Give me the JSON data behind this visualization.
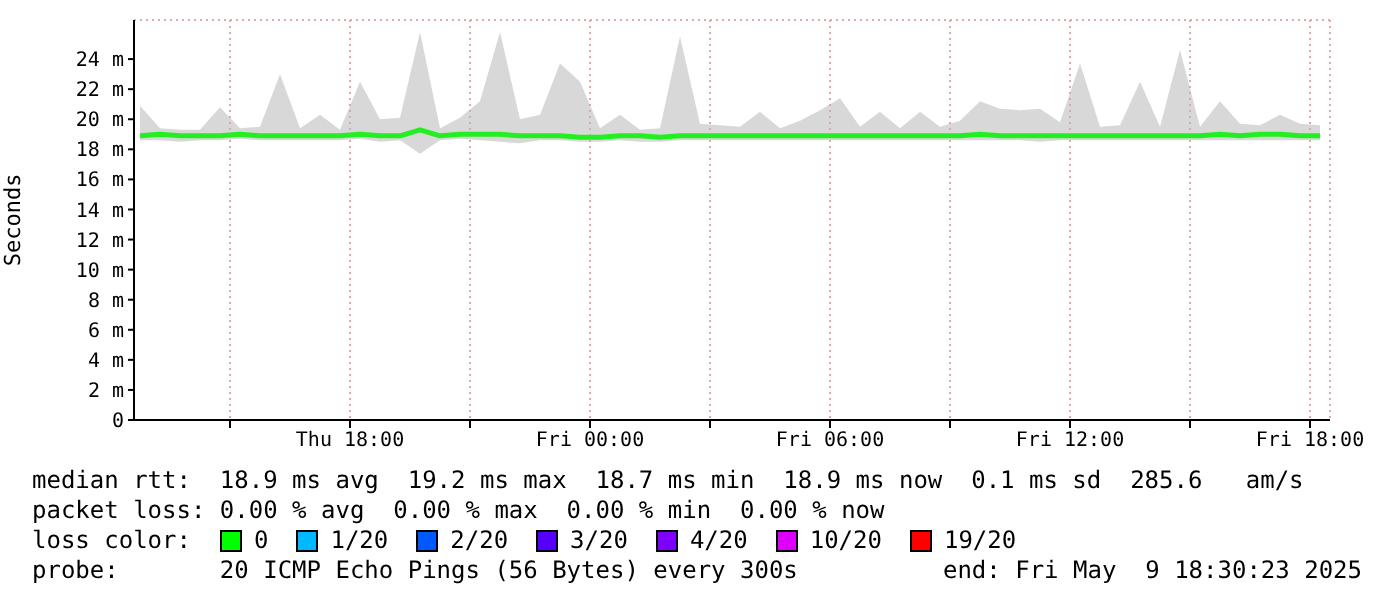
{
  "chart_data": {
    "type": "line",
    "ylabel": "Seconds",
    "x": [
      "2025-05-08T12:45",
      "2025-05-08T13:15",
      "2025-05-08T13:45",
      "2025-05-08T14:15",
      "2025-05-08T14:45",
      "2025-05-08T15:15",
      "2025-05-08T15:45",
      "2025-05-08T16:15",
      "2025-05-08T16:45",
      "2025-05-08T17:15",
      "2025-05-08T17:45",
      "2025-05-08T18:15",
      "2025-05-08T18:45",
      "2025-05-08T19:15",
      "2025-05-08T19:45",
      "2025-05-08T20:15",
      "2025-05-08T20:45",
      "2025-05-08T21:15",
      "2025-05-08T21:45",
      "2025-05-08T22:15",
      "2025-05-08T22:45",
      "2025-05-08T23:15",
      "2025-05-08T23:45",
      "2025-05-09T00:15",
      "2025-05-09T00:45",
      "2025-05-09T01:15",
      "2025-05-09T01:45",
      "2025-05-09T02:15",
      "2025-05-09T02:45",
      "2025-05-09T03:15",
      "2025-05-09T03:45",
      "2025-05-09T04:15",
      "2025-05-09T04:45",
      "2025-05-09T05:15",
      "2025-05-09T05:45",
      "2025-05-09T06:15",
      "2025-05-09T06:45",
      "2025-05-09T07:15",
      "2025-05-09T07:45",
      "2025-05-09T08:15",
      "2025-05-09T08:45",
      "2025-05-09T09:15",
      "2025-05-09T09:45",
      "2025-05-09T10:15",
      "2025-05-09T10:45",
      "2025-05-09T11:15",
      "2025-05-09T11:45",
      "2025-05-09T12:15",
      "2025-05-09T12:45",
      "2025-05-09T13:15",
      "2025-05-09T13:45",
      "2025-05-09T14:15",
      "2025-05-09T14:45",
      "2025-05-09T15:15",
      "2025-05-09T15:45",
      "2025-05-09T16:15",
      "2025-05-09T16:45",
      "2025-05-09T17:15",
      "2025-05-09T17:45",
      "2025-05-09T18:15"
    ],
    "series": [
      {
        "color": "#22ee22",
        "values": [
          18.9,
          19.0,
          18.9,
          18.9,
          18.9,
          19.0,
          18.9,
          18.9,
          18.9,
          18.9,
          18.9,
          19.0,
          18.9,
          18.9,
          19.3,
          18.9,
          19.0,
          19.0,
          19.0,
          18.9,
          18.9,
          18.9,
          18.8,
          18.8,
          18.9,
          18.9,
          18.8,
          18.9,
          18.9,
          18.9,
          18.9,
          18.9,
          18.9,
          18.9,
          18.9,
          18.9,
          18.9,
          18.9,
          18.9,
          18.9,
          18.9,
          18.9,
          19.0,
          18.9,
          18.9,
          18.9,
          18.9,
          18.9,
          18.9,
          18.9,
          18.9,
          18.9,
          18.9,
          18.9,
          19.0,
          18.9,
          19.0,
          19.0,
          18.9,
          18.9
        ],
        "lower": [
          18.6,
          18.6,
          18.5,
          18.6,
          18.6,
          18.7,
          18.6,
          18.6,
          18.6,
          18.6,
          18.6,
          18.7,
          18.5,
          18.6,
          17.7,
          18.6,
          18.7,
          18.6,
          18.5,
          18.4,
          18.6,
          18.6,
          18.5,
          18.5,
          18.6,
          18.5,
          18.5,
          18.6,
          18.6,
          18.6,
          18.6,
          18.6,
          18.6,
          18.6,
          18.6,
          18.6,
          18.6,
          18.6,
          18.6,
          18.6,
          18.6,
          18.6,
          18.6,
          18.6,
          18.6,
          18.5,
          18.6,
          18.6,
          18.6,
          18.6,
          18.6,
          18.6,
          18.6,
          18.6,
          18.6,
          18.6,
          18.6,
          18.6,
          18.6,
          18.6
        ],
        "upper": [
          20.9,
          19.4,
          19.3,
          19.3,
          20.8,
          19.4,
          19.5,
          23.0,
          19.4,
          20.3,
          19.3,
          22.5,
          20.0,
          20.1,
          25.8,
          19.4,
          20.1,
          21.2,
          25.8,
          20.0,
          20.3,
          23.7,
          22.5,
          19.4,
          20.3,
          19.3,
          19.4,
          25.5,
          19.7,
          19.6,
          19.5,
          20.5,
          19.4,
          19.9,
          20.6,
          21.4,
          19.5,
          20.5,
          19.4,
          20.5,
          19.5,
          19.9,
          21.2,
          20.7,
          20.6,
          20.7,
          19.8,
          23.7,
          19.5,
          19.6,
          22.5,
          19.5,
          24.6,
          19.5,
          21.2,
          19.7,
          19.6,
          20.3,
          19.7,
          19.6
        ]
      }
    ],
    "xlim": [
      "2025-05-08T12:36",
      "2025-05-09T18:30"
    ],
    "xticks": [
      {
        "value": "2025-05-08T15:00",
        "label": null
      },
      {
        "value": "2025-05-08T18:00",
        "label": "Thu 18:00"
      },
      {
        "value": "2025-05-08T21:00",
        "label": null
      },
      {
        "value": "2025-05-09T00:00",
        "label": "Fri 00:00"
      },
      {
        "value": "2025-05-09T03:00",
        "label": null
      },
      {
        "value": "2025-05-09T06:00",
        "label": "Fri 06:00"
      },
      {
        "value": "2025-05-09T09:00",
        "label": null
      },
      {
        "value": "2025-05-09T12:00",
        "label": "Fri 12:00"
      },
      {
        "value": "2025-05-09T15:00",
        "label": null
      },
      {
        "value": "2025-05-09T18:00",
        "label": "Fri 18:00"
      }
    ],
    "ylim": [
      0,
      26.6
    ],
    "yticks": [
      0,
      {
        "value": 2,
        "label": "2 m"
      },
      {
        "value": 4,
        "label": "4 m"
      },
      {
        "value": 6,
        "label": "6 m"
      },
      {
        "value": 8,
        "label": "8 m"
      },
      {
        "value": 10,
        "label": "10 m"
      },
      {
        "value": 12,
        "label": "12 m"
      },
      {
        "value": 14,
        "label": "14 m"
      },
      {
        "value": 16,
        "label": "16 m"
      },
      {
        "value": 18,
        "label": "18 m"
      },
      {
        "value": 20,
        "label": "20 m"
      },
      {
        "value": 22,
        "label": "22 m"
      },
      {
        "value": 24,
        "label": "24 m"
      }
    ],
    "grid": true,
    "marker": "none",
    "line_style": "solid",
    "annotations": [
      "median rtt:  18.9 ms avg  19.2 ms max  18.7 ms min  18.9 ms now  0.1 ms sd  285.6   am/s",
      "packet loss: 0.00 % avg  0.00 % max  0.00 % min  0.00 % now",
      "loss color:",
      "0",
      "1/20",
      "2/20",
      "3/20",
      "4/20",
      "10/20",
      "19/20",
      "probe:       20 ICMP Echo Pings (56 Bytes) every 300s",
      "end: Fri May  9 18:30:23 2025"
    ]
  }
}
